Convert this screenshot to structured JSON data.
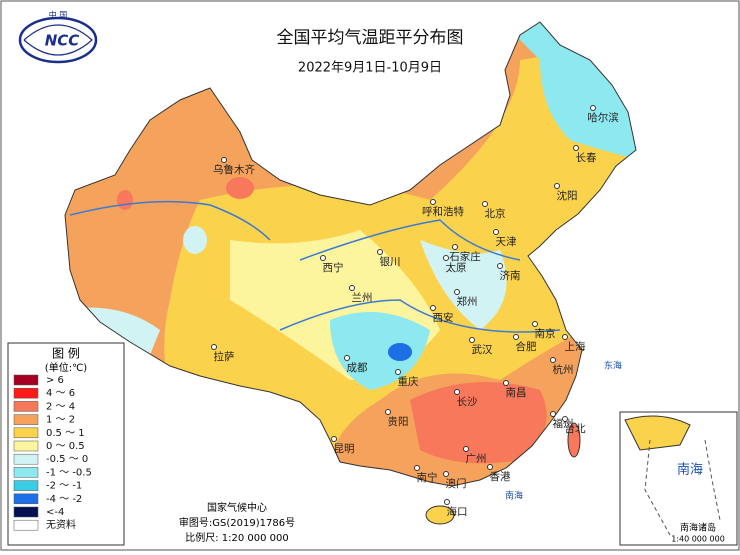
{
  "header": {
    "title": "全国平均气温距平分布图",
    "subtitle": "2022年9月1日-10月9日"
  },
  "logo": {
    "text": "NCC",
    "country": "中 国"
  },
  "legend": {
    "title": "图 例",
    "unit": "(单位:℃)",
    "items": [
      {
        "label": "> 6",
        "color": "#a50021"
      },
      {
        "label": "4 ～ 6",
        "color": "#ff1a1a"
      },
      {
        "label": "2 ～ 4",
        "color": "#f7785a"
      },
      {
        "label": "1 ～ 2",
        "color": "#f5a35c"
      },
      {
        "label": "0.5 ～ 1",
        "color": "#fbd24c"
      },
      {
        "label": "0 ～ 0.5",
        "color": "#fdf49e"
      },
      {
        "label": "-0.5 ～ 0",
        "color": "#d2f3f4"
      },
      {
        "label": "-1 ～ -0.5",
        "color": "#8ee8ef"
      },
      {
        "label": "-2 ～ -1",
        "color": "#38cde6"
      },
      {
        "label": "-4 ～ -2",
        "color": "#1c6fe6"
      },
      {
        "label": "<-4",
        "color": "#041054"
      },
      {
        "label": "无资料",
        "color": "#ffffff"
      }
    ]
  },
  "cities": [
    "乌鲁木齐",
    "哈尔滨",
    "长春",
    "沈阳",
    "呼和浩特",
    "北京",
    "天津",
    "石家庄",
    "太原",
    "济南",
    "银川",
    "西宁",
    "兰州",
    "郑州",
    "西安",
    "南京",
    "合肥",
    "上海",
    "武汉",
    "杭州",
    "成都",
    "重庆",
    "拉萨",
    "长沙",
    "南昌",
    "福州",
    "台北",
    "贵阳",
    "昆明",
    "南宁",
    "广州",
    "香港",
    "澳门",
    "海口"
  ],
  "seas": [
    "东海",
    "南海"
  ],
  "inset": {
    "title": "南海",
    "label": "南海诸岛",
    "scale": "1:40 000 000"
  },
  "footer": {
    "org": "国家气候中心",
    "approval": "审图号:GS(2019)1786号",
    "scale": "比例尺: 1:20 000 000"
  }
}
